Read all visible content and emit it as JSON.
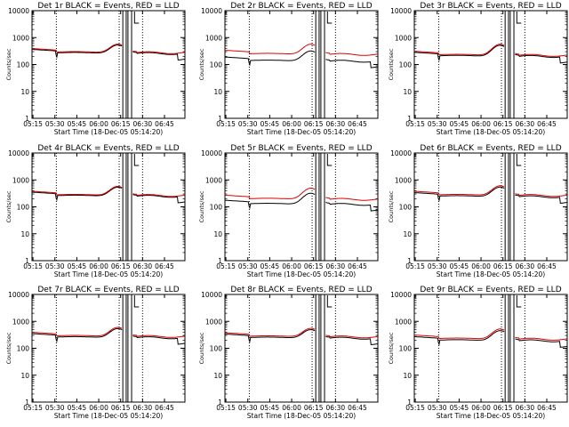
{
  "figure": {
    "colors": {
      "events": "#000000",
      "lld": "#e00000",
      "background": "#ffffff"
    },
    "common_axes": {
      "xlabel": "Start Time (18-Dec-05 05:14:20)",
      "ylabel": "Counts/sec",
      "x_ticks": [
        "05:15",
        "05:30",
        "05:45",
        "06:00",
        "06:15",
        "06:30",
        "06:45"
      ],
      "x_tick_minutes": [
        15,
        30,
        45,
        60,
        75,
        90,
        105
      ],
      "y_ticks": [
        "1",
        "10",
        "100",
        "1000",
        "10000"
      ],
      "y_tick_values": [
        1,
        10,
        100,
        1000,
        10000
      ],
      "xlim_minutes": [
        14.33,
        119
      ],
      "ylim": [
        1,
        10000
      ],
      "yscale": "log",
      "dotted_vlines_minutes": [
        31,
        74,
        90
      ],
      "solid_vlines_minutes": [
        76.5,
        78.8,
        80,
        82.5
      ],
      "bracket_marker_minute": 84.5
    }
  },
  "chart_data": [
    {
      "type": "line",
      "title": "Det 1r BLACK = Events, RED = LLD",
      "events_base": 270,
      "lld_base": 290,
      "peak": 2.0
    },
    {
      "type": "line",
      "title": "Det 2r BLACK = Events, RED = LLD",
      "events_base": 140,
      "lld_base": 250,
      "peak": 2.3
    },
    {
      "type": "line",
      "title": "Det 3r BLACK = Events, RED = LLD",
      "events_base": 210,
      "lld_base": 230,
      "peak": 2.5
    },
    {
      "type": "line",
      "title": "Det 4r BLACK = Events, RED = LLD",
      "events_base": 260,
      "lld_base": 280,
      "peak": 2.1
    },
    {
      "type": "line",
      "title": "Det 5r BLACK = Events, RED = LLD",
      "events_base": 130,
      "lld_base": 200,
      "peak": 2.5
    },
    {
      "type": "line",
      "title": "Det 6r BLACK = Events, RED = LLD",
      "events_base": 250,
      "lld_base": 280,
      "peak": 2.2
    },
    {
      "type": "line",
      "title": "Det 7r BLACK = Events, RED = LLD",
      "events_base": 260,
      "lld_base": 290,
      "peak": 2.1
    },
    {
      "type": "line",
      "title": "Det 8r BLACK = Events, RED = LLD",
      "events_base": 250,
      "lld_base": 280,
      "peak": 2.0
    },
    {
      "type": "line",
      "title": "Det 9r BLACK = Events, RED = LLD",
      "events_base": 200,
      "lld_base": 230,
      "peak": 2.3
    }
  ]
}
